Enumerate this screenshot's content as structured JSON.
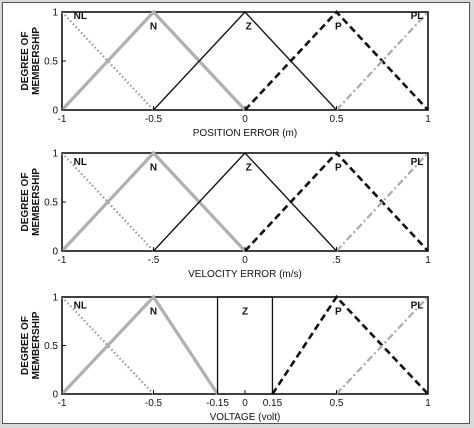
{
  "chart_data": [
    {
      "type": "line",
      "xlabel": "POSITION ERROR (m)",
      "ylabel": "DEGREE OF MEMBERSHIP",
      "xlim": [
        -1,
        1
      ],
      "ylim": [
        0,
        1
      ],
      "x_ticks": [
        -1,
        -0.5,
        0,
        0.5,
        1
      ],
      "x_tick_labels": [
        "-1",
        "-0.5",
        "0",
        "0.5",
        "1"
      ],
      "y_ticks": [
        0,
        0.5,
        1
      ],
      "y_tick_labels": [
        "0",
        "0.5",
        "1"
      ],
      "series": [
        {
          "name": "NL",
          "style": "dotted",
          "color": "#999999",
          "x": [
            -1,
            -0.5
          ],
          "y": [
            1,
            0
          ]
        },
        {
          "name": "N",
          "style": "solid-thick",
          "color": "#b0b0b0",
          "x": [
            -1,
            -0.5,
            0
          ],
          "y": [
            0,
            1,
            0
          ]
        },
        {
          "name": "Z",
          "style": "solid",
          "color": "#111111",
          "x": [
            -0.5,
            0,
            0.5
          ],
          "y": [
            0,
            1,
            0
          ]
        },
        {
          "name": "P",
          "style": "dashed",
          "color": "#111111",
          "x": [
            0,
            0.5,
            1
          ],
          "y": [
            0,
            1,
            0
          ]
        },
        {
          "name": "PL",
          "style": "dashdot",
          "color": "#aaaaaa",
          "x": [
            0.5,
            1
          ],
          "y": [
            0,
            1
          ]
        }
      ],
      "mf_labels": [
        {
          "text": "NL",
          "x": -0.9,
          "y": 0.93
        },
        {
          "text": "N",
          "x": -0.5,
          "y": 0.82
        },
        {
          "text": "Z",
          "x": 0.02,
          "y": 0.82
        },
        {
          "text": "P",
          "x": 0.51,
          "y": 0.82
        },
        {
          "text": "PL",
          "x": 0.94,
          "y": 0.93
        }
      ]
    },
    {
      "type": "line",
      "xlabel": "VELOCITY ERROR (m/s)",
      "ylabel": "DEGREE OF MEMBERSHIP",
      "xlim": [
        -1,
        1
      ],
      "ylim": [
        0,
        1
      ],
      "x_ticks": [
        -1,
        -0.5,
        0,
        0.5,
        1
      ],
      "x_tick_labels": [
        "-1",
        "-.5",
        "0",
        ".5",
        "1"
      ],
      "y_ticks": [
        0,
        0.5,
        1
      ],
      "y_tick_labels": [
        "0",
        "0.5",
        "1"
      ],
      "series": [
        {
          "name": "NL",
          "style": "dotted",
          "color": "#999999",
          "x": [
            -1,
            -0.5
          ],
          "y": [
            1,
            0
          ]
        },
        {
          "name": "N",
          "style": "solid-thick",
          "color": "#b0b0b0",
          "x": [
            -1,
            -0.5,
            0
          ],
          "y": [
            0,
            1,
            0
          ]
        },
        {
          "name": "Z",
          "style": "solid",
          "color": "#111111",
          "x": [
            -0.5,
            0,
            0.5
          ],
          "y": [
            0,
            1,
            0
          ]
        },
        {
          "name": "P",
          "style": "dashed",
          "color": "#111111",
          "x": [
            0,
            0.5,
            1
          ],
          "y": [
            0,
            1,
            0
          ]
        },
        {
          "name": "PL",
          "style": "dashdot",
          "color": "#aaaaaa",
          "x": [
            0.5,
            1
          ],
          "y": [
            0,
            1
          ]
        }
      ],
      "mf_labels": [
        {
          "text": "NL",
          "x": -0.9,
          "y": 0.88
        },
        {
          "text": "N",
          "x": -0.5,
          "y": 0.82
        },
        {
          "text": "Z",
          "x": 0.02,
          "y": 0.82
        },
        {
          "text": "P",
          "x": 0.51,
          "y": 0.82
        },
        {
          "text": "PL",
          "x": 0.94,
          "y": 0.88
        }
      ]
    },
    {
      "type": "line",
      "xlabel": "VOLTAGE (volt)",
      "ylabel": "DEGREE OF MEMBERSHIP",
      "xlim": [
        -1,
        1
      ],
      "ylim": [
        0,
        1
      ],
      "x_ticks": [
        -1,
        -0.5,
        -0.15,
        0,
        0.15,
        0.5,
        1
      ],
      "x_tick_labels": [
        "-1",
        "-0.5",
        "-0.15",
        "0",
        "0.15",
        "0.5",
        "1"
      ],
      "y_ticks": [
        0,
        0.5,
        1
      ],
      "y_tick_labels": [
        "0",
        "0.5",
        "1"
      ],
      "series": [
        {
          "name": "NL",
          "style": "dotted",
          "color": "#999999",
          "x": [
            -1,
            -0.5
          ],
          "y": [
            1,
            0
          ]
        },
        {
          "name": "N",
          "style": "solid-thick",
          "color": "#b0b0b0",
          "x": [
            -1,
            -0.5,
            -0.15
          ],
          "y": [
            0,
            1,
            0
          ]
        },
        {
          "name": "Z",
          "style": "solid",
          "color": "#111111",
          "x": [
            -0.15,
            -0.15,
            0.15,
            0.15
          ],
          "y": [
            0,
            1,
            1,
            0
          ]
        },
        {
          "name": "P",
          "style": "dashed",
          "color": "#111111",
          "x": [
            0.15,
            0.5,
            1
          ],
          "y": [
            0,
            1,
            0
          ]
        },
        {
          "name": "PL",
          "style": "dashdot",
          "color": "#aaaaaa",
          "x": [
            0.5,
            1
          ],
          "y": [
            0,
            1
          ]
        }
      ],
      "mf_labels": [
        {
          "text": "NL",
          "x": -0.9,
          "y": 0.88
        },
        {
          "text": "N",
          "x": -0.5,
          "y": 0.82
        },
        {
          "text": "Z",
          "x": 0.0,
          "y": 0.82
        },
        {
          "text": "P",
          "x": 0.51,
          "y": 0.82
        },
        {
          "text": "PL",
          "x": 0.94,
          "y": 0.88
        }
      ]
    }
  ]
}
